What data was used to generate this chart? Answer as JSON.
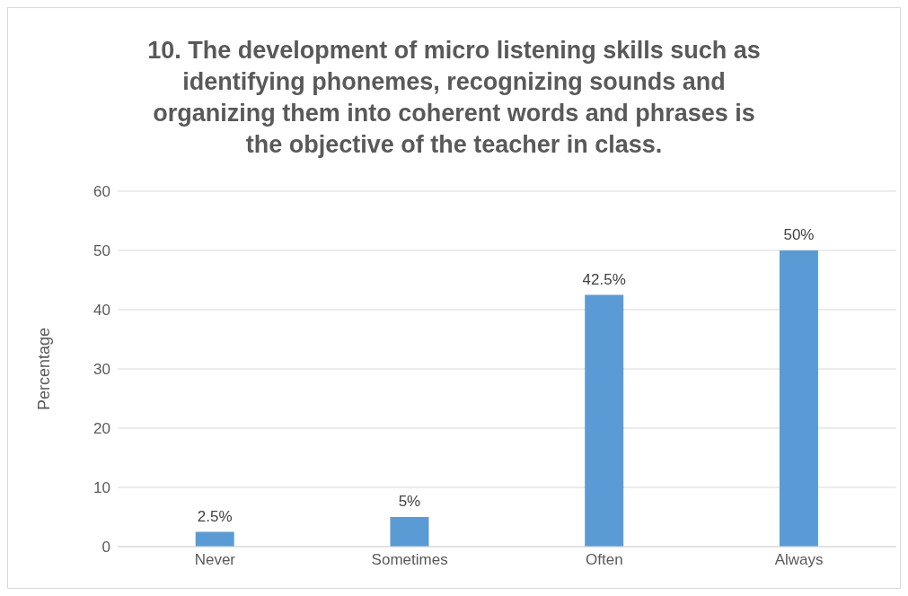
{
  "chart_data": {
    "type": "bar",
    "title": "10. The development of micro listening skills such as identifying phonemes, recognizing sounds and organizing them into coherent words and phrases is the objective of the teacher in class.",
    "ylabel": "Percentage",
    "categories": [
      "Never",
      "Sometimes",
      "Often",
      "Always"
    ],
    "series": [
      {
        "color": "#5b9bd5",
        "values": [
          2.5,
          5,
          42.5,
          50
        ],
        "value_labels": [
          "2.5%",
          "5%",
          "42.5%",
          "50%"
        ]
      }
    ],
    "ylim": [
      0,
      60
    ],
    "yticks": [
      0,
      10,
      20,
      30,
      40,
      50,
      60
    ],
    "grid": "y",
    "legend": false
  }
}
